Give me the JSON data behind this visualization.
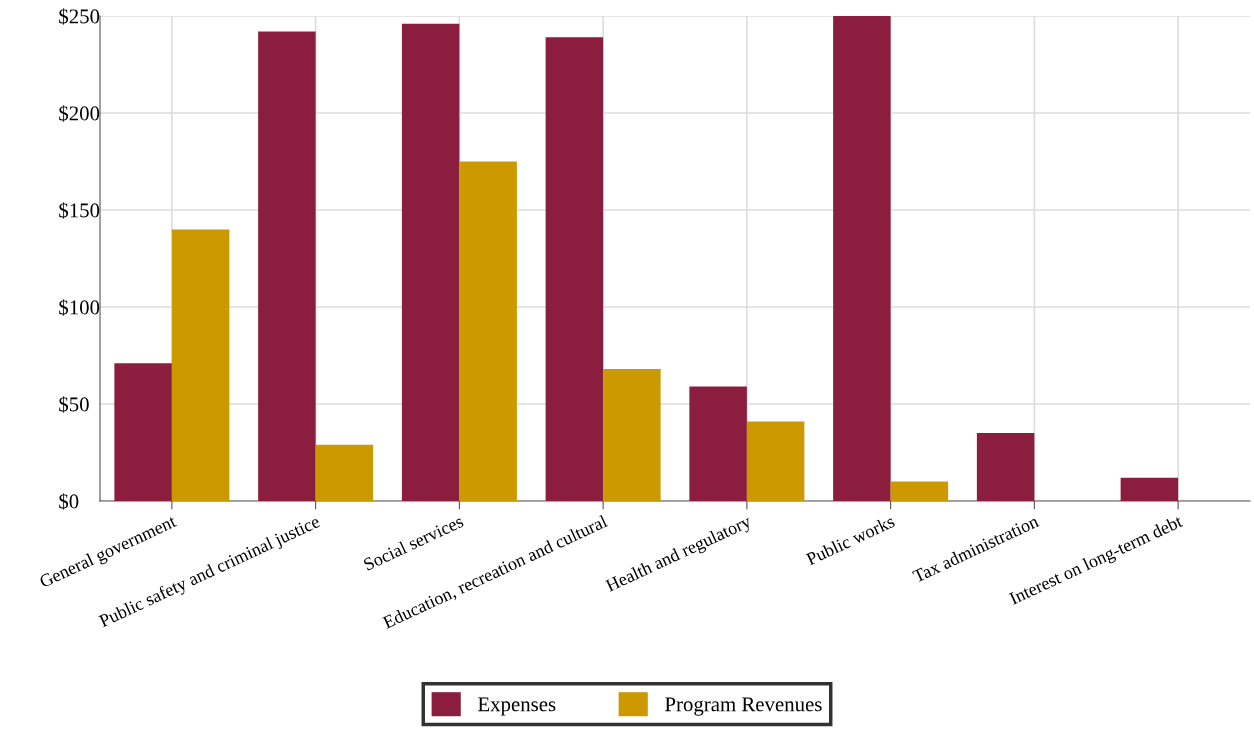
{
  "chart_data": {
    "type": "bar",
    "categories": [
      "General government",
      "Public safety and criminal justice",
      "Social services",
      "Education, recreation and cultural",
      "Health and regulatory",
      "Public works",
      "Tax administration",
      "Interest on long-term debt"
    ],
    "series": [
      {
        "name": "Expenses",
        "color": "#8b1e3f",
        "values": [
          71,
          242,
          246,
          239,
          59,
          250,
          35,
          12
        ]
      },
      {
        "name": "Program Revenues",
        "color": "#cc9900",
        "values": [
          140,
          29,
          175,
          68,
          41,
          10,
          0,
          0
        ]
      }
    ],
    "ylim": [
      0,
      250
    ],
    "yticks": [
      {
        "value": 0,
        "label": "$0"
      },
      {
        "value": 50,
        "label": "$50"
      },
      {
        "value": 100,
        "label": "$100"
      },
      {
        "value": 150,
        "label": "$150"
      },
      {
        "value": 200,
        "label": "$200"
      },
      {
        "value": 250,
        "label": "$250"
      }
    ],
    "grid": true,
    "legend": "bottom"
  }
}
